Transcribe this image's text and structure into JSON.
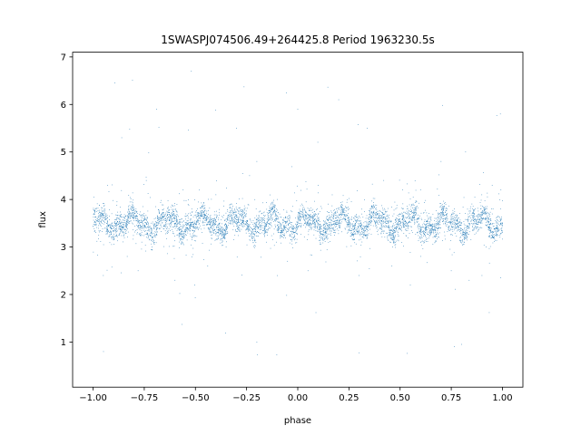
{
  "chart_data": {
    "type": "scatter",
    "title": "1SWASPJ074506.49+264425.8 Period 1963230.5s",
    "xlabel": "phase",
    "ylabel": "flux",
    "xlim": [
      -1.1,
      1.1
    ],
    "ylim": [
      0.05,
      7.1
    ],
    "xticks": [
      -1.0,
      -0.75,
      -0.5,
      -0.25,
      0.0,
      0.25,
      0.5,
      0.75,
      1.0
    ],
    "xtick_labels": [
      "−1.00",
      "−0.75",
      "−0.50",
      "−0.25",
      "0.00",
      "0.25",
      "0.50",
      "0.75",
      "1.00"
    ],
    "yticks": [
      1,
      2,
      3,
      4,
      5,
      6,
      7
    ],
    "ytick_labels": [
      "1",
      "2",
      "3",
      "4",
      "5",
      "6",
      "7"
    ],
    "point_color": "#1f77b4",
    "grid": false,
    "description_of_distribution": {
      "x_range": [
        -1.0,
        1.0
      ],
      "baseline_flux_center": 3.5,
      "core_spread": [
        2.2,
        4.6
      ],
      "outlier_range": [
        0.35,
        6.75
      ]
    },
    "series": [
      {
        "points": [
          [
            -0.98,
            3.6
          ],
          [
            -0.95,
            2.4
          ],
          [
            -0.93,
            4.3
          ],
          [
            -0.9,
            3.2
          ],
          [
            -0.86,
            5.3
          ],
          [
            -0.82,
            3.7
          ],
          [
            -0.78,
            2.5
          ],
          [
            -0.74,
            4.4
          ],
          [
            -0.7,
            3.1
          ],
          [
            -0.69,
            5.9
          ],
          [
            -0.65,
            3.6
          ],
          [
            -0.6,
            2.3
          ],
          [
            -0.56,
            4.2
          ],
          [
            -0.52,
            6.7
          ],
          [
            -0.48,
            3.4
          ],
          [
            -0.44,
            2.6
          ],
          [
            -0.4,
            4.1
          ],
          [
            -0.35,
            3.0
          ],
          [
            -0.3,
            5.5
          ],
          [
            -0.25,
            3.7
          ],
          [
            -0.2,
            4.8
          ],
          [
            -0.2,
            1.0
          ],
          [
            -0.15,
            3.3
          ],
          [
            -0.1,
            4.0
          ],
          [
            -0.05,
            2.7
          ],
          [
            0.0,
            3.6
          ],
          [
            0.0,
            5.9
          ],
          [
            0.05,
            2.5
          ],
          [
            0.1,
            4.3
          ],
          [
            0.15,
            3.1
          ],
          [
            0.2,
            6.1
          ],
          [
            0.25,
            3.8
          ],
          [
            0.3,
            2.4
          ],
          [
            0.34,
            5.5
          ],
          [
            0.38,
            3.5
          ],
          [
            0.42,
            4.4
          ],
          [
            0.46,
            2.6
          ],
          [
            0.5,
            3.7
          ],
          [
            0.55,
            2.2
          ],
          [
            0.6,
            4.2
          ],
          [
            0.65,
            3.3
          ],
          [
            0.7,
            4.8
          ],
          [
            0.75,
            2.5
          ],
          [
            0.8,
            0.95
          ],
          [
            0.82,
            5.0
          ],
          [
            0.86,
            3.6
          ],
          [
            0.9,
            2.4
          ],
          [
            0.95,
            4.3
          ],
          [
            0.99,
            5.8
          ],
          [
            1.0,
            3.5
          ]
        ]
      }
    ]
  }
}
